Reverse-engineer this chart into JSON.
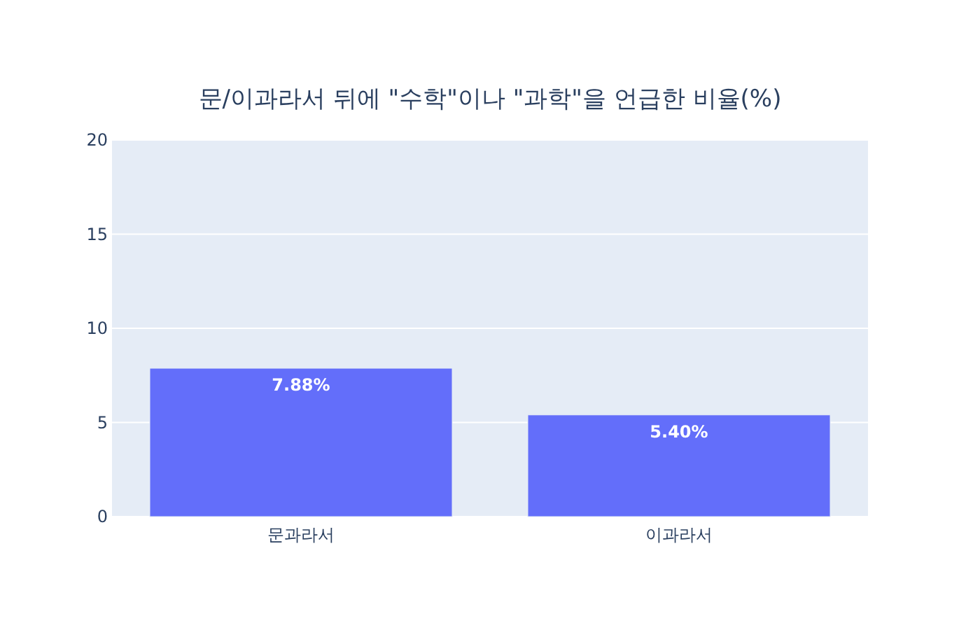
{
  "chart_data": {
    "type": "bar",
    "title": "문/이과라서 뒤에 \"수학\"이나 \"과학\"을 언급한 비율(%)",
    "categories": [
      "문과라서",
      "이과라서"
    ],
    "values": [
      7.88,
      5.4
    ],
    "value_labels": [
      "7.88%",
      "5.40%"
    ],
    "color": "#636efa",
    "ylim": [
      0,
      20
    ],
    "yticks": [
      0,
      5,
      10,
      15,
      20
    ],
    "grid": "y"
  }
}
